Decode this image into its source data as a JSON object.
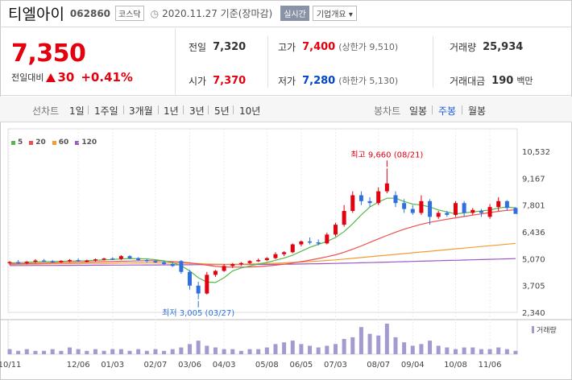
{
  "header": {
    "name": "티엘아이",
    "code": "062860",
    "market": "코스닥",
    "asof": "2020.11.27 기준(장마감)",
    "realtime": "실시간",
    "company_info": "기업개요"
  },
  "quote": {
    "price": "7,350",
    "change_label": "전일대비",
    "change_value": "30",
    "change_pct": "+0.41%",
    "prev_label": "전일",
    "prev": "7,320",
    "high_label": "고가",
    "high": "7,400",
    "upper_limit": "(상한가 9,510)",
    "volume_label": "거래량",
    "volume": "25,934",
    "open_label": "시가",
    "open": "7,370",
    "low_label": "저가",
    "low": "7,280",
    "lower_limit": "(하한가 5,130)",
    "amount_label": "거래대금",
    "amount": "190",
    "amount_unit": "백만"
  },
  "tabs": {
    "line_label": "선차트",
    "periods": [
      "1일",
      "1주일",
      "3개월",
      "1년",
      "3년",
      "5년",
      "10년"
    ],
    "candle_label": "봉차트",
    "candles": [
      "일봉",
      "주봉",
      "월봉"
    ],
    "candle_active": "주봉"
  },
  "colors": {
    "up": "#e3000f",
    "down": "#2f6fe0",
    "ma5": "#56b849",
    "ma20": "#ec4f4f",
    "ma60": "#f39c32",
    "ma120": "#9b59c6",
    "volume": "#a49ad0"
  },
  "chart_data": {
    "type": "candlestick",
    "legend": [
      "5",
      "20",
      "60",
      "120"
    ],
    "y_ticks": [
      10532,
      9167,
      7801,
      6436,
      5070,
      3705,
      2340
    ],
    "y_labels": [
      "10,532",
      "9,167",
      "7,801",
      "6,436",
      "5,070",
      "3,705",
      "2,340"
    ],
    "x_labels": [
      "10/11",
      "12/06",
      "01/03",
      "02/07",
      "03/06",
      "04/03",
      "05/08",
      "06/05",
      "07/03",
      "08/07",
      "09/04",
      "10/08",
      "11/06"
    ],
    "x_label_weeks": [
      0,
      8,
      12,
      17,
      21,
      25,
      30,
      34,
      38,
      43,
      47,
      52,
      56
    ],
    "high_annotation": "최고 9,660 (08/21)",
    "low_annotation": "최저 3,005 (03/27)",
    "volume_label": "거래량",
    "candles": [
      [
        4850,
        4950,
        4750,
        4900
      ],
      [
        4900,
        5000,
        4800,
        4850
      ],
      [
        4850,
        4950,
        4780,
        4920
      ],
      [
        4920,
        5050,
        4850,
        4980
      ],
      [
        4980,
        5050,
        4900,
        4950
      ],
      [
        4950,
        5000,
        4850,
        4900
      ],
      [
        4900,
        5000,
        4850,
        4960
      ],
      [
        4960,
        5050,
        4900,
        5000
      ],
      [
        5000,
        5080,
        4920,
        4950
      ],
      [
        4950,
        5020,
        4880,
        4980
      ],
      [
        4980,
        5080,
        4920,
        5040
      ],
      [
        5040,
        5120,
        4980,
        5080
      ],
      [
        5080,
        5150,
        5000,
        5060
      ],
      [
        5060,
        5250,
        5000,
        5200
      ],
      [
        5200,
        5250,
        5050,
        5100
      ],
      [
        5100,
        5150,
        4950,
        5000
      ],
      [
        5000,
        5050,
        4880,
        4950
      ],
      [
        4950,
        5000,
        4850,
        4900
      ],
      [
        4900,
        4950,
        4750,
        4800
      ],
      [
        4800,
        4900,
        4650,
        4700
      ],
      [
        4950,
        5000,
        4300,
        4400
      ],
      [
        4400,
        4500,
        3500,
        3700
      ],
      [
        3700,
        3900,
        3005,
        3300
      ],
      [
        3300,
        4400,
        3250,
        4250
      ],
      [
        4250,
        4500,
        4150,
        4450
      ],
      [
        4450,
        4800,
        4400,
        4700
      ],
      [
        4700,
        4850,
        4600,
        4800
      ],
      [
        4800,
        4900,
        4700,
        4850
      ],
      [
        4850,
        5000,
        4800,
        4950
      ],
      [
        4950,
        5080,
        4900,
        5000
      ],
      [
        5000,
        5150,
        4950,
        5100
      ],
      [
        5100,
        5400,
        5050,
        5300
      ],
      [
        5300,
        5450,
        5200,
        5400
      ],
      [
        5400,
        5850,
        5350,
        5800
      ],
      [
        5800,
        6000,
        5700,
        5950
      ],
      [
        5950,
        6150,
        5800,
        5900
      ],
      [
        5900,
        6050,
        5750,
        5850
      ],
      [
        5850,
        6400,
        5800,
        6300
      ],
      [
        6300,
        6900,
        6200,
        6800
      ],
      [
        6800,
        7800,
        6700,
        7500
      ],
      [
        7500,
        8500,
        7400,
        8300
      ],
      [
        8300,
        8500,
        7800,
        8000
      ],
      [
        8000,
        8200,
        7700,
        7900
      ],
      [
        7900,
        8700,
        7800,
        8500
      ],
      [
        8500,
        9660,
        8400,
        8900
      ],
      [
        8300,
        8500,
        7700,
        7900
      ],
      [
        7900,
        8100,
        7400,
        7600
      ],
      [
        7600,
        7800,
        7300,
        7400
      ],
      [
        7400,
        8300,
        7300,
        8000
      ],
      [
        8000,
        8100,
        6800,
        7200
      ],
      [
        7200,
        7500,
        7100,
        7400
      ],
      [
        7400,
        7500,
        7200,
        7300
      ],
      [
        7300,
        8000,
        7200,
        7900
      ],
      [
        7900,
        8000,
        7200,
        7400
      ],
      [
        7400,
        7650,
        7300,
        7550
      ],
      [
        7500,
        7600,
        7200,
        7400
      ],
      [
        7200,
        7850,
        7100,
        7700
      ],
      [
        7700,
        8200,
        7500,
        8000
      ],
      [
        8000,
        8050,
        7500,
        7650
      ],
      [
        7650,
        7700,
        7400,
        7350
      ]
    ],
    "ma5": [
      4850,
      4870,
      4880,
      4900,
      4920,
      4930,
      4940,
      4950,
      4960,
      4970,
      4990,
      5010,
      5030,
      5060,
      5080,
      5070,
      5060,
      5020,
      4960,
      4880,
      4720,
      4450,
      4100,
      3880,
      3860,
      4100,
      4450,
      4600,
      4700,
      4800,
      4880,
      4990,
      5100,
      5250,
      5450,
      5650,
      5800,
      5950,
      6150,
      6450,
      6850,
      7300,
      7700,
      7950,
      8150,
      8150,
      7980,
      7850,
      7800,
      7700,
      7550,
      7450,
      7350,
      7400,
      7450,
      7500,
      7550,
      7650,
      7700,
      7650
    ],
    "ma20": [
      4800,
      4810,
      4820,
      4830,
      4845,
      4860,
      4870,
      4880,
      4890,
      4900,
      4910,
      4920,
      4930,
      4940,
      4950,
      4960,
      4965,
      4960,
      4950,
      4930,
      4900,
      4860,
      4800,
      4740,
      4680,
      4650,
      4640,
      4640,
      4650,
      4670,
      4700,
      4740,
      4790,
      4850,
      4920,
      5000,
      5080,
      5170,
      5270,
      5400,
      5550,
      5720,
      5900,
      6080,
      6250,
      6420,
      6570,
      6700,
      6820,
      6920,
      7000,
      7080,
      7150,
      7220,
      7290,
      7350,
      7420,
      7480,
      7530,
      7560
    ],
    "ma60": [
      4780,
      4785,
      4790,
      4795,
      4800,
      4805,
      4810,
      4815,
      4820,
      4825,
      4830,
      4835,
      4840,
      4845,
      4850,
      4855,
      4860,
      4860,
      4855,
      4850,
      4845,
      4835,
      4820,
      4805,
      4795,
      4790,
      4790,
      4795,
      4800,
      4810,
      4825,
      4840,
      4860,
      4880,
      4900,
      4925,
      4950,
      4980,
      5010,
      5050,
      5090,
      5130,
      5170,
      5210,
      5250,
      5290,
      5330,
      5370,
      5410,
      5450,
      5490,
      5530,
      5570,
      5610,
      5650,
      5690,
      5730,
      5770,
      5810,
      5850
    ],
    "ma120": [
      4720,
      4722,
      4724,
      4726,
      4728,
      4730,
      4732,
      4734,
      4736,
      4738,
      4740,
      4742,
      4744,
      4746,
      4748,
      4750,
      4752,
      4754,
      4756,
      4758,
      4760,
      4762,
      4764,
      4766,
      4768,
      4770,
      4772,
      4774,
      4776,
      4778,
      4780,
      4785,
      4790,
      4795,
      4800,
      4808,
      4816,
      4824,
      4832,
      4842,
      4852,
      4862,
      4872,
      4884,
      4896,
      4908,
      4920,
      4932,
      4944,
      4956,
      4968,
      4980,
      4992,
      5004,
      5016,
      5028,
      5040,
      5052,
      5064,
      5076
    ],
    "volume": [
      3,
      2,
      3,
      2,
      2,
      3,
      2,
      4,
      3,
      2,
      3,
      2,
      3,
      3,
      2,
      3,
      2,
      3,
      2,
      3,
      4,
      6,
      8,
      5,
      4,
      3,
      3,
      2,
      3,
      3,
      4,
      6,
      7,
      8,
      6,
      5,
      4,
      5,
      6,
      9,
      10,
      16,
      12,
      11,
      18,
      10,
      7,
      5,
      6,
      8,
      5,
      4,
      3,
      4,
      4,
      3,
      3,
      4,
      3,
      2
    ]
  }
}
